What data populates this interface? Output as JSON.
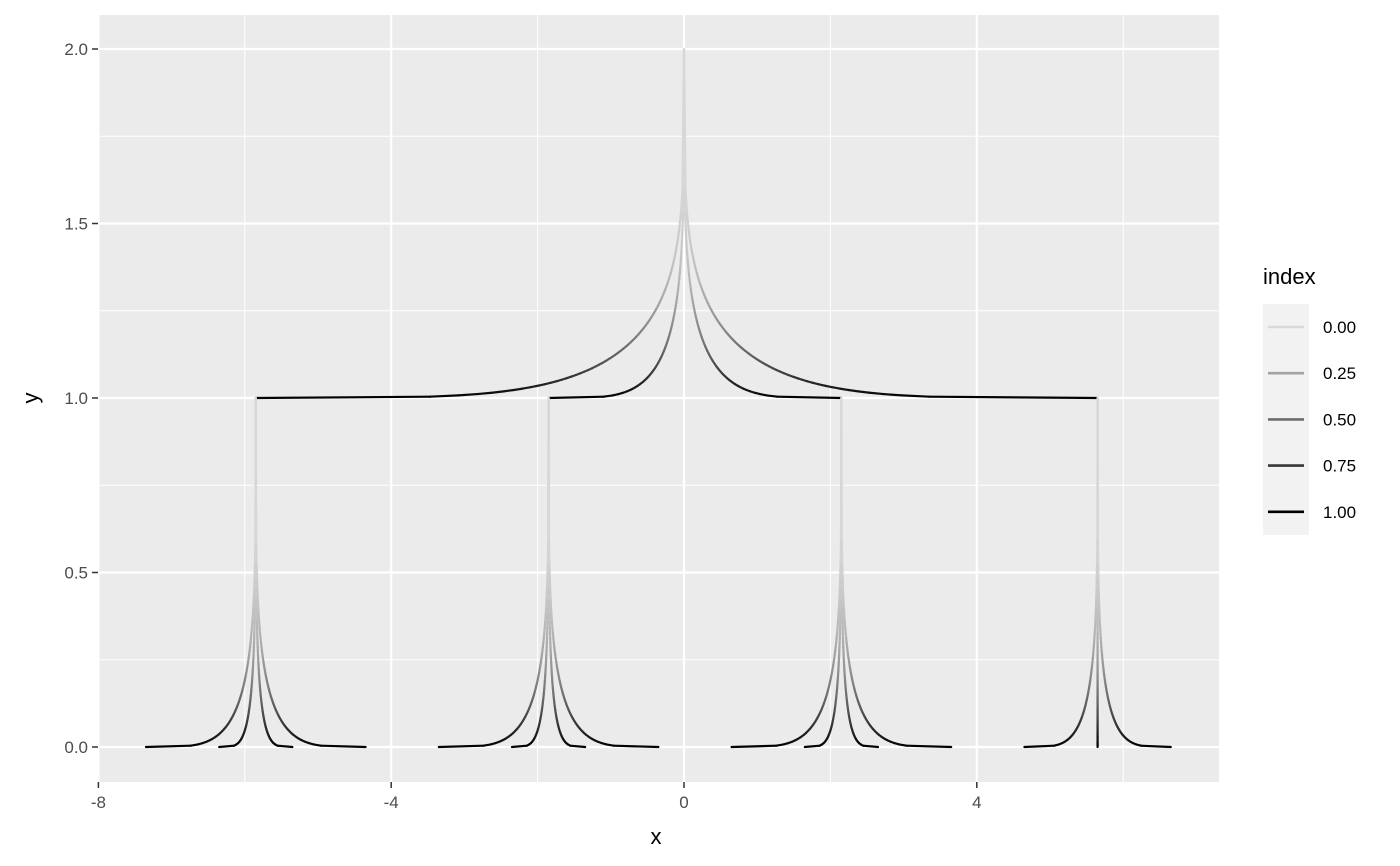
{
  "chart_data": {
    "type": "line",
    "xlabel": "x",
    "ylabel": "y",
    "xlim": [
      -8,
      7.3
    ],
    "ylim": [
      -0.1,
      2.1
    ],
    "x_ticks": [
      -8,
      -4,
      0,
      4
    ],
    "x_tick_labels": [
      "-8",
      "-4",
      "0",
      "4"
    ],
    "x_minor_ticks": [
      -6,
      -2,
      2,
      6
    ],
    "y_ticks": [
      0,
      0.5,
      1,
      1.5,
      2
    ],
    "y_tick_labels": [
      "0.0",
      "0.5",
      "1.0",
      "1.5",
      "2.0"
    ],
    "y_minor_ticks": [
      0.25,
      0.75,
      1.25,
      1.75
    ],
    "grid": true,
    "colors": {
      "panel": "#ebebeb",
      "grid": "#ffffff",
      "line_low": "#d9d9d9",
      "line_high": "#000000",
      "legend_key_bg": "#f2f2f2"
    },
    "legend": {
      "title": "index",
      "placement": "right",
      "entries": [
        {
          "label": "0.00",
          "value": 0.0
        },
        {
          "label": "0.25",
          "value": 0.25
        },
        {
          "label": "0.50",
          "value": 0.5
        },
        {
          "label": "0.75",
          "value": 0.75
        },
        {
          "label": "1.00",
          "value": 1.0
        }
      ]
    },
    "edges": [
      {
        "from": [
          0,
          2
        ],
        "to": [
          -5.85,
          1
        ]
      },
      {
        "from": [
          0,
          2
        ],
        "to": [
          -1.85,
          1
        ]
      },
      {
        "from": [
          0,
          2
        ],
        "to": [
          2.15,
          1
        ]
      },
      {
        "from": [
          0,
          2
        ],
        "to": [
          5.65,
          1
        ]
      },
      {
        "from": [
          -5.85,
          1
        ],
        "to": [
          -7.35,
          0
        ]
      },
      {
        "from": [
          -5.85,
          1
        ],
        "to": [
          -6.35,
          0
        ]
      },
      {
        "from": [
          -5.85,
          1
        ],
        "to": [
          -5.35,
          0
        ]
      },
      {
        "from": [
          -5.85,
          1
        ],
        "to": [
          -4.35,
          0
        ]
      },
      {
        "from": [
          -1.85,
          1
        ],
        "to": [
          -3.35,
          0
        ]
      },
      {
        "from": [
          -1.85,
          1
        ],
        "to": [
          -2.35,
          0
        ]
      },
      {
        "from": [
          -1.85,
          1
        ],
        "to": [
          -1.35,
          0
        ]
      },
      {
        "from": [
          -1.85,
          1
        ],
        "to": [
          -0.35,
          0
        ]
      },
      {
        "from": [
          2.15,
          1
        ],
        "to": [
          0.65,
          0
        ]
      },
      {
        "from": [
          2.15,
          1
        ],
        "to": [
          1.65,
          0
        ]
      },
      {
        "from": [
          2.15,
          1
        ],
        "to": [
          2.65,
          0
        ]
      },
      {
        "from": [
          2.15,
          1
        ],
        "to": [
          3.65,
          0
        ]
      },
      {
        "from": [
          5.65,
          1
        ],
        "to": [
          4.65,
          0
        ]
      },
      {
        "from": [
          5.65,
          1
        ],
        "to": [
          5.65,
          0
        ]
      },
      {
        "from": [
          5.65,
          1
        ],
        "to": [
          6.65,
          0
        ]
      }
    ]
  }
}
